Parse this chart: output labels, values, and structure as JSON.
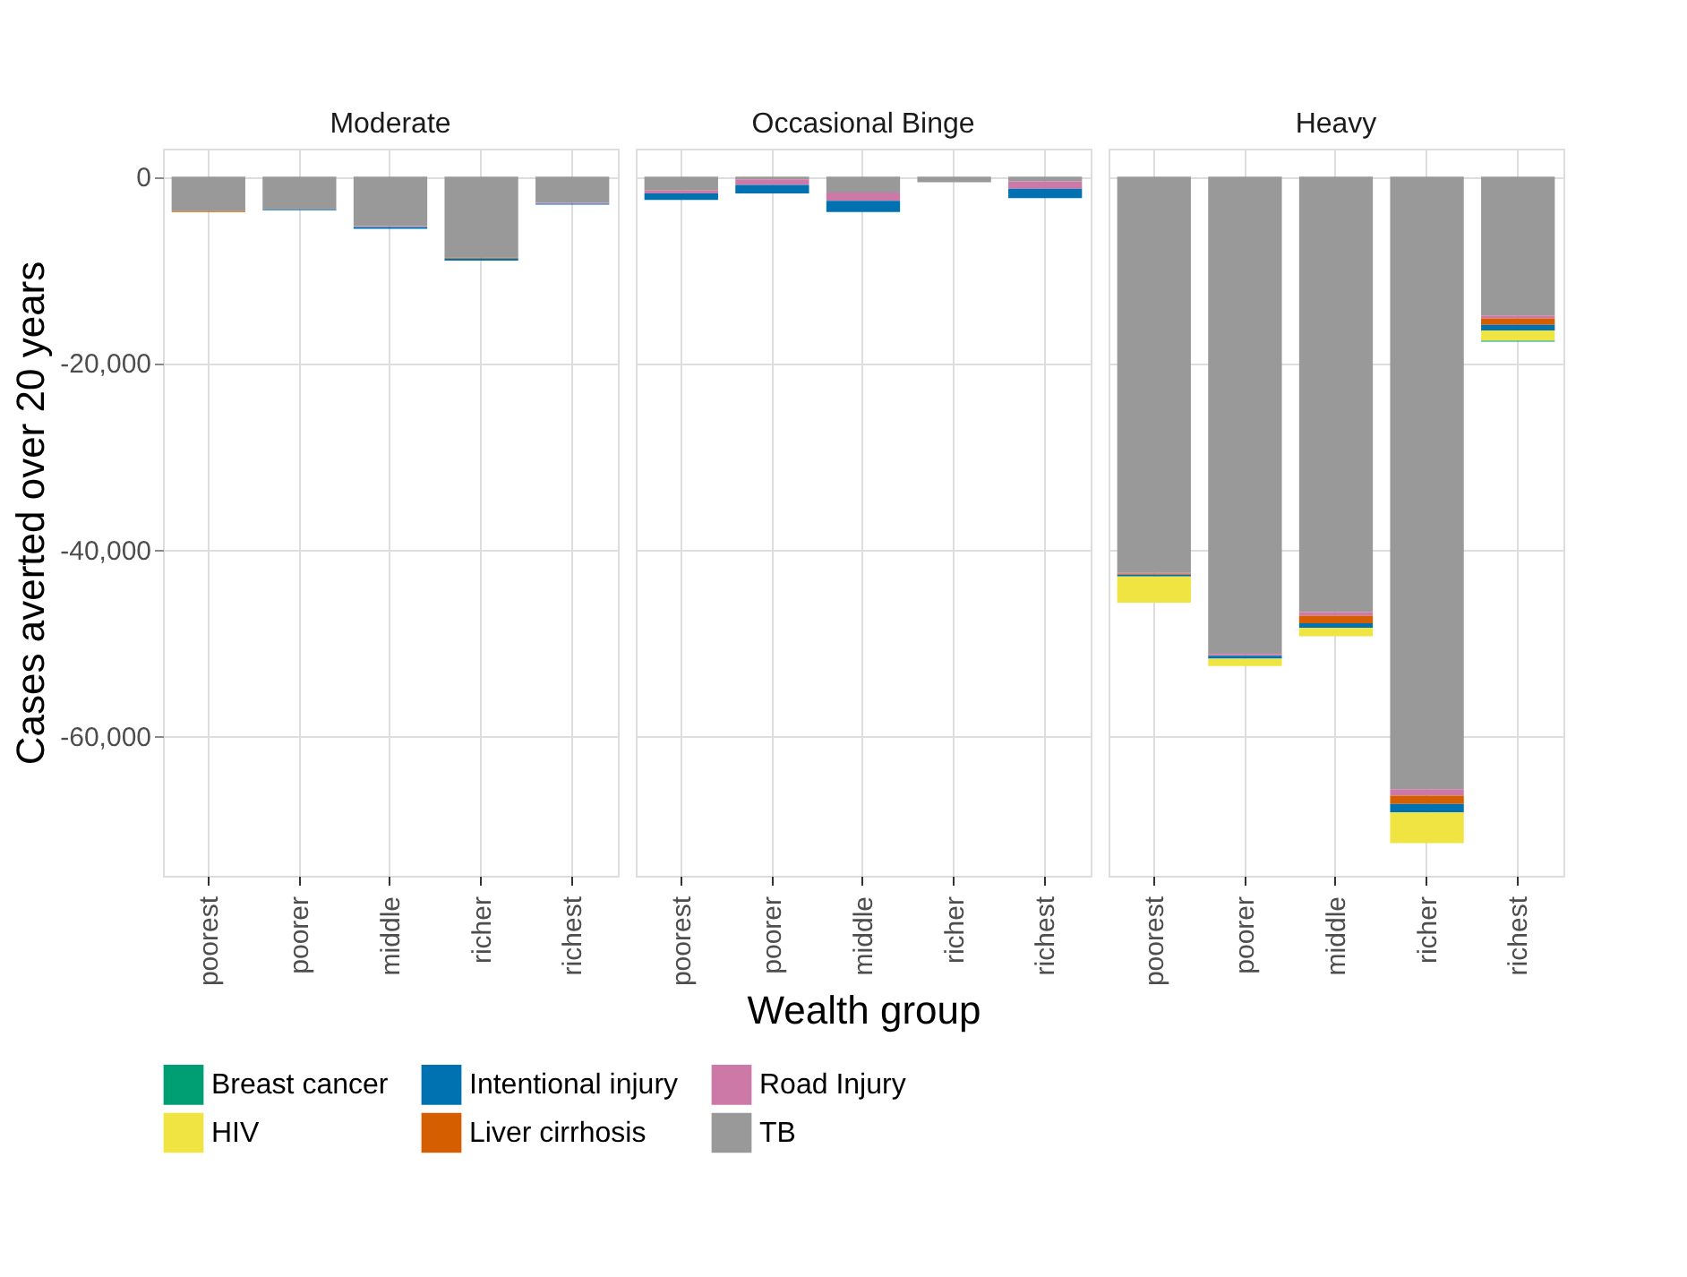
{
  "chart_data": [
    {
      "type": "bar",
      "stacked": true,
      "title": "Moderate",
      "ylabel": "Cases averted over 20 years",
      "categories": [
        "poorest",
        "poorer",
        "middle",
        "richer",
        "richest"
      ],
      "ylim": [
        -75000,
        3000
      ],
      "yticks": [
        0,
        {
          "value": -20000,
          "label": "-20,000"
        },
        {
          "value": -40000,
          "label": "-40,000"
        },
        {
          "value": -60000,
          "label": "-60,000"
        }
      ],
      "grid": true,
      "legend": "bottom",
      "series": [
        {
          "name": "TB",
          "color": "#999999",
          "values": [
            -3700,
            -3500,
            -5300,
            -8700,
            -2800
          ]
        },
        {
          "name": "Road Injury",
          "color": "#cc79a7",
          "values": [
            null,
            null,
            -100,
            null,
            -100
          ]
        },
        {
          "name": "Liver cirrhosis",
          "color": "#d55e00",
          "values": [
            -100,
            null,
            null,
            -100,
            null
          ]
        },
        {
          "name": "Intentional injury",
          "color": "#0072b2",
          "values": [
            null,
            -100,
            -200,
            -200,
            -100
          ]
        }
      ]
    },
    {
      "type": "bar",
      "stacked": true,
      "title": "Occasional Binge",
      "xlabel": "Wealth group",
      "categories": [
        "poorest",
        "poorer",
        "middle",
        "richer",
        "richest"
      ],
      "ylim": [
        -75000,
        3000
      ],
      "yticks": [
        0,
        -20000,
        -40000,
        -60000
      ],
      "grid": true,
      "tick_labels": "x",
      "series": [
        {
          "name": "TB",
          "color": "#999999",
          "values": [
            -1500,
            -300,
            -1700,
            -600,
            -500
          ]
        },
        {
          "name": "Road Injury",
          "color": "#cc79a7",
          "values": [
            -300,
            -600,
            -900,
            null,
            -800
          ]
        },
        {
          "name": "Intentional injury",
          "color": "#0072b2",
          "values": [
            -700,
            -900,
            -1200,
            null,
            -1000
          ]
        }
      ]
    },
    {
      "type": "bar",
      "stacked": true,
      "title": "Heavy",
      "categories": [
        "poorest",
        "poorer",
        "middle",
        "richer",
        "richest"
      ],
      "ylim": [
        -75000,
        3000
      ],
      "yticks": [
        0,
        -20000,
        -40000,
        -60000
      ],
      "grid": true,
      "tick_labels": "x",
      "legend": "bottom",
      "series": [
        {
          "name": "TB",
          "color": "#999999",
          "values": [
            -42500,
            -51200,
            -46700,
            -65700,
            -14900
          ]
        },
        {
          "name": "Road Injury",
          "color": "#cc79a7",
          "values": [
            -100,
            -200,
            -400,
            -700,
            -300
          ]
        },
        {
          "name": "Liver cirrhosis",
          "color": "#d55e00",
          "values": [
            -100,
            null,
            -800,
            -900,
            -700
          ]
        },
        {
          "name": "Intentional injury",
          "color": "#0072b2",
          "values": [
            -200,
            -300,
            -500,
            -900,
            -600
          ]
        },
        {
          "name": "HIV",
          "color": "#f0e442",
          "values": [
            -2800,
            -800,
            -900,
            -3300,
            -1100
          ]
        },
        {
          "name": "Breast cancer",
          "color": "#009e73",
          "values": [
            null,
            null,
            null,
            null,
            -100
          ]
        }
      ]
    }
  ]
}
